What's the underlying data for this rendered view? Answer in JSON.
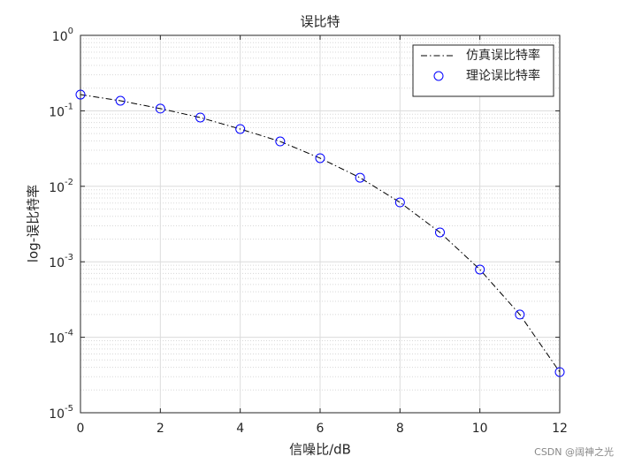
{
  "chart_data": {
    "type": "line",
    "title": "误比特",
    "xlabel": "信噪比/dB",
    "ylabel": "log-误比特率",
    "x": [
      0,
      1,
      2,
      3,
      4,
      5,
      6,
      7,
      8,
      9,
      10,
      11,
      12
    ],
    "series": [
      {
        "name": "仿真误比特率",
        "color": "#000000",
        "marker": "none",
        "linestyle": "dashdot",
        "values": [
          0.164,
          0.136,
          0.107,
          0.0815,
          0.0574,
          0.0393,
          0.0236,
          0.013,
          0.00612,
          0.00245,
          0.00079,
          0.0002,
          3.46e-05
        ]
      },
      {
        "name": "理论误比特率",
        "color": "#0000ff",
        "marker": "circle",
        "linestyle": "none",
        "values": [
          0.164,
          0.136,
          0.107,
          0.0815,
          0.0574,
          0.0393,
          0.0236,
          0.013,
          0.00612,
          0.00245,
          0.00079,
          0.0002,
          3.46e-05
        ]
      }
    ],
    "xlim": [
      0,
      12
    ],
    "xticks": [
      0,
      2,
      4,
      6,
      8,
      10,
      12
    ],
    "ylim": [
      1e-05,
      1
    ],
    "yscale": "log",
    "yticks": [
      {
        "value": 1,
        "label": "10",
        "exponent": "0"
      },
      {
        "value": 0.1,
        "label": "10",
        "exponent": "-1"
      },
      {
        "value": 0.01,
        "label": "10",
        "exponent": "-2"
      },
      {
        "value": 0.001,
        "label": "10",
        "exponent": "-3"
      },
      {
        "value": 0.0001,
        "label": "10",
        "exponent": "-4"
      },
      {
        "value": 1e-05,
        "label": "10",
        "exponent": "-5"
      }
    ],
    "grid": true,
    "minor_grid": true,
    "legend": "upper right",
    "watermark": "CSDN @阔神之光"
  }
}
